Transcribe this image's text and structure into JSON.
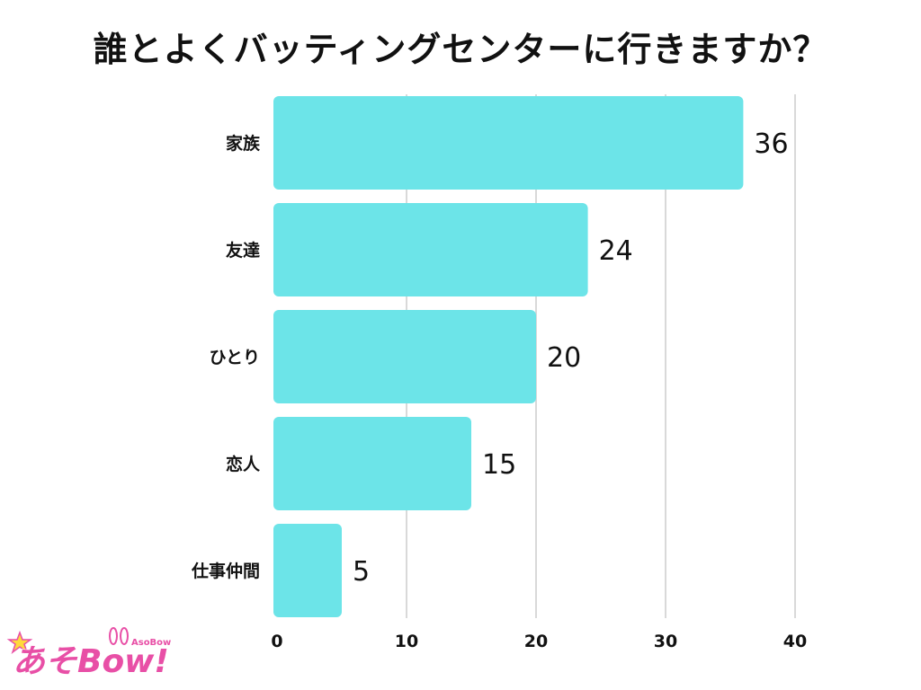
{
  "chart_data": {
    "type": "bar",
    "orientation": "horizontal",
    "title": "誰とよくバッティングセンターに行きますか？",
    "categories": [
      "家族",
      "友達",
      "ひとり",
      "恋人",
      "仕事仲間"
    ],
    "values": [
      36,
      24,
      20,
      15,
      5
    ],
    "xlim": [
      0,
      40
    ],
    "xticks": [
      0,
      10,
      20,
      30,
      40
    ],
    "grid": true,
    "bar_color": "#6ce4e8",
    "grid_color": "#d9d9d9"
  },
  "logo": {
    "text": "あそBow!",
    "sub_text": "AsoBow",
    "color": "#e84fa6"
  }
}
